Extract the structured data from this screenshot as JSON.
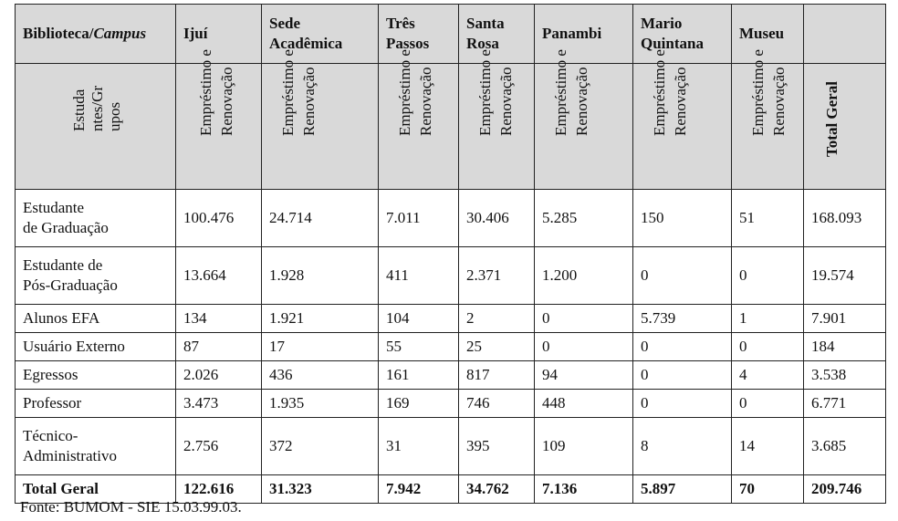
{
  "header": {
    "corner_label": "Biblioteca/",
    "corner_label_italic": "Campus",
    "campuses": [
      "Ijuí",
      "Sede Acadêmica",
      "Três Passos",
      "Santa Rosa",
      "Panambi",
      "Mario Quintana",
      "Museu"
    ],
    "total_label": ""
  },
  "subheader": {
    "row_label": "Estudantes/Grupos",
    "row_label_lines": [
      "Estuda",
      "ntes/Gr",
      "upos"
    ],
    "col_label_lines": [
      "Empréstimo e",
      "Renovação"
    ],
    "total_label": "Total Geral"
  },
  "rows": [
    {
      "label": "Estudante de Graduação",
      "label_lines": [
        "Estudante",
        "de Graduação"
      ],
      "values": [
        "100.476",
        "24.714",
        "7.011",
        "30.406",
        "5.285",
        "150",
        "51"
      ],
      "total": "168.093"
    },
    {
      "label": "Estudante de Pós-Graduação",
      "label_lines": [
        "Estudante de",
        "Pós-Graduação"
      ],
      "values": [
        "13.664",
        "1.928",
        "411",
        "2.371",
        "1.200",
        "0",
        "0"
      ],
      "total": "19.574"
    },
    {
      "label": "Alunos EFA",
      "label_lines": [
        "Alunos EFA"
      ],
      "values": [
        "134",
        "1.921",
        "104",
        "2",
        "0",
        "5.739",
        "1"
      ],
      "total": "7.901"
    },
    {
      "label": "Usuário Externo",
      "label_lines": [
        "Usuário Externo"
      ],
      "values": [
        "87",
        "17",
        "55",
        "25",
        "0",
        "0",
        "0"
      ],
      "total": "184"
    },
    {
      "label": "Egressos",
      "label_lines": [
        "Egressos"
      ],
      "values": [
        "2.026",
        "436",
        "161",
        "817",
        "94",
        "0",
        "4"
      ],
      "total": "3.538"
    },
    {
      "label": "Professor",
      "label_lines": [
        "Professor"
      ],
      "values": [
        "3.473",
        "1.935",
        "169",
        "746",
        "448",
        "0",
        "0"
      ],
      "total": "6.771"
    },
    {
      "label": "Técnico-Administrativo",
      "label_lines": [
        "Técnico-",
        "Administrativo"
      ],
      "values": [
        "2.756",
        "372",
        "31",
        "395",
        "109",
        "8",
        "14"
      ],
      "total": "3.685"
    }
  ],
  "total_row": {
    "label": "Total Geral",
    "values": [
      "122.616",
      "31.323",
      "7.942",
      "34.762",
      "7.136",
      "5.897",
      "70"
    ],
    "total": "209.746"
  },
  "source": "Fonte: BUMOM - SIE 15.03.99.03.",
  "colors": {
    "header_bg": "#d9d9d9",
    "border": "#222222"
  }
}
